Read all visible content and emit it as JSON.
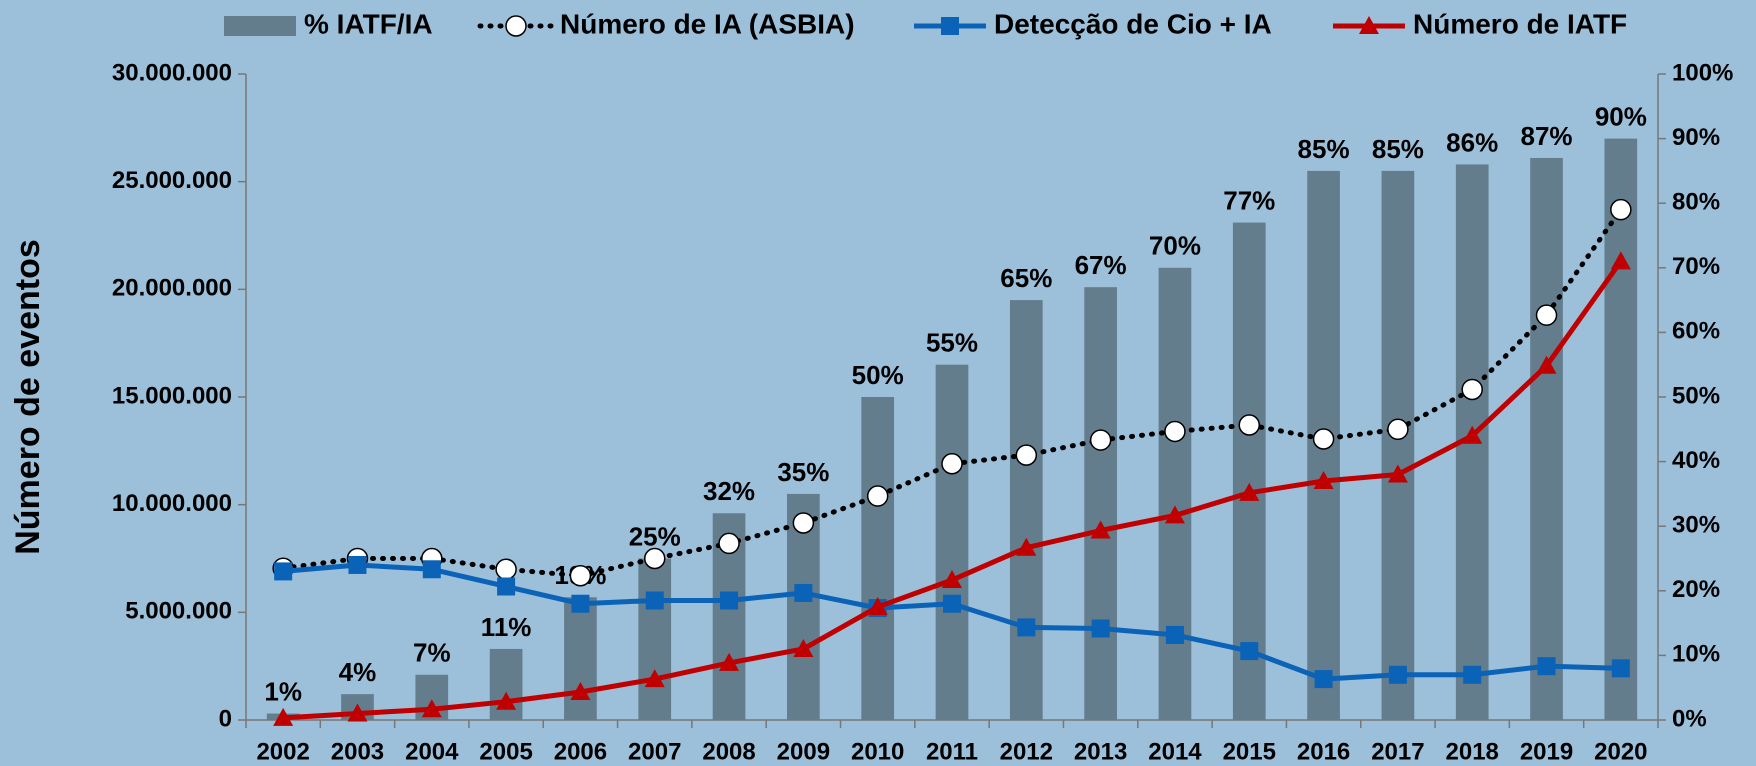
{
  "chart_data": {
    "type": "combo",
    "y_label": "Número de eventos",
    "categories": [
      "2002",
      "2003",
      "2004",
      "2005",
      "2006",
      "2007",
      "2008",
      "2009",
      "2010",
      "2011",
      "2012",
      "2013",
      "2014",
      "2015",
      "2016",
      "2017",
      "2018",
      "2019",
      "2020"
    ],
    "ylim": [
      0,
      30000000
    ],
    "yticks": [
      0,
      {
        "value": 5000000,
        "label": "5.000.000"
      },
      {
        "value": 10000000,
        "label": "10.000.000"
      },
      {
        "value": 15000000,
        "label": "15.000.000"
      },
      {
        "value": 20000000,
        "label": "20.000.000"
      },
      {
        "value": 25000000,
        "label": "25.000.000"
      },
      {
        "value": 30000000,
        "label": "30.000.000"
      }
    ],
    "y2lim": [
      0,
      100
    ],
    "y2ticks": [
      {
        "value": 0,
        "label": "0%"
      },
      {
        "value": 10,
        "label": "10%"
      },
      {
        "value": 20,
        "label": "20%"
      },
      {
        "value": 30,
        "label": "30%"
      },
      {
        "value": 40,
        "label": "40%"
      },
      {
        "value": 50,
        "label": "50%"
      },
      {
        "value": 60,
        "label": "60%"
      },
      {
        "value": 70,
        "label": "70%"
      },
      {
        "value": 80,
        "label": "80%"
      },
      {
        "value": 90,
        "label": "90%"
      },
      {
        "value": 100,
        "label": "100%"
      }
    ],
    "series": [
      {
        "name": "% IATF/IA",
        "type": "bar",
        "axis": "y2",
        "color": "#637d8c",
        "values": [
          1,
          4,
          7,
          11,
          19,
          25,
          32,
          35,
          50,
          55,
          65,
          67,
          70,
          77,
          85,
          85,
          86,
          87,
          90
        ],
        "value_labels": [
          "1%",
          "4%",
          "7%",
          "11%",
          "19%",
          "25%",
          "32%",
          "35%",
          "50%",
          "55%",
          "65%",
          "67%",
          "70%",
          "77%",
          "85%",
          "85%",
          "86%",
          "87%",
          "90%"
        ]
      },
      {
        "name": "Número de IA (ASBIA)",
        "type": "line",
        "marker": "circle",
        "dash": true,
        "color": "#000000",
        "values": [
          7050000,
          7500000,
          7500000,
          7000000,
          6700000,
          7500000,
          8200000,
          9150000,
          10400000,
          11900000,
          12300000,
          13000000,
          13400000,
          13700000,
          13050000,
          13500000,
          15350000,
          18800000,
          23700000
        ]
      },
      {
        "name": "Detecção de Cio + IA",
        "type": "line",
        "marker": "square",
        "dash": false,
        "color": "#0b63b8",
        "values": [
          6900000,
          7200000,
          7000000,
          6200000,
          5400000,
          5550000,
          5550000,
          5900000,
          5200000,
          5400000,
          4300000,
          4250000,
          3950000,
          3200000,
          1900000,
          2100000,
          2100000,
          2500000,
          2400000
        ]
      },
      {
        "name": "Número de IATF",
        "type": "line",
        "marker": "triangle",
        "dash": false,
        "color": "#c00000",
        "values": [
          100000,
          300000,
          500000,
          850000,
          1300000,
          1900000,
          2650000,
          3300000,
          5250000,
          6500000,
          8000000,
          8800000,
          9500000,
          10550000,
          11100000,
          11400000,
          13200000,
          16450000,
          21300000
        ]
      }
    ]
  }
}
